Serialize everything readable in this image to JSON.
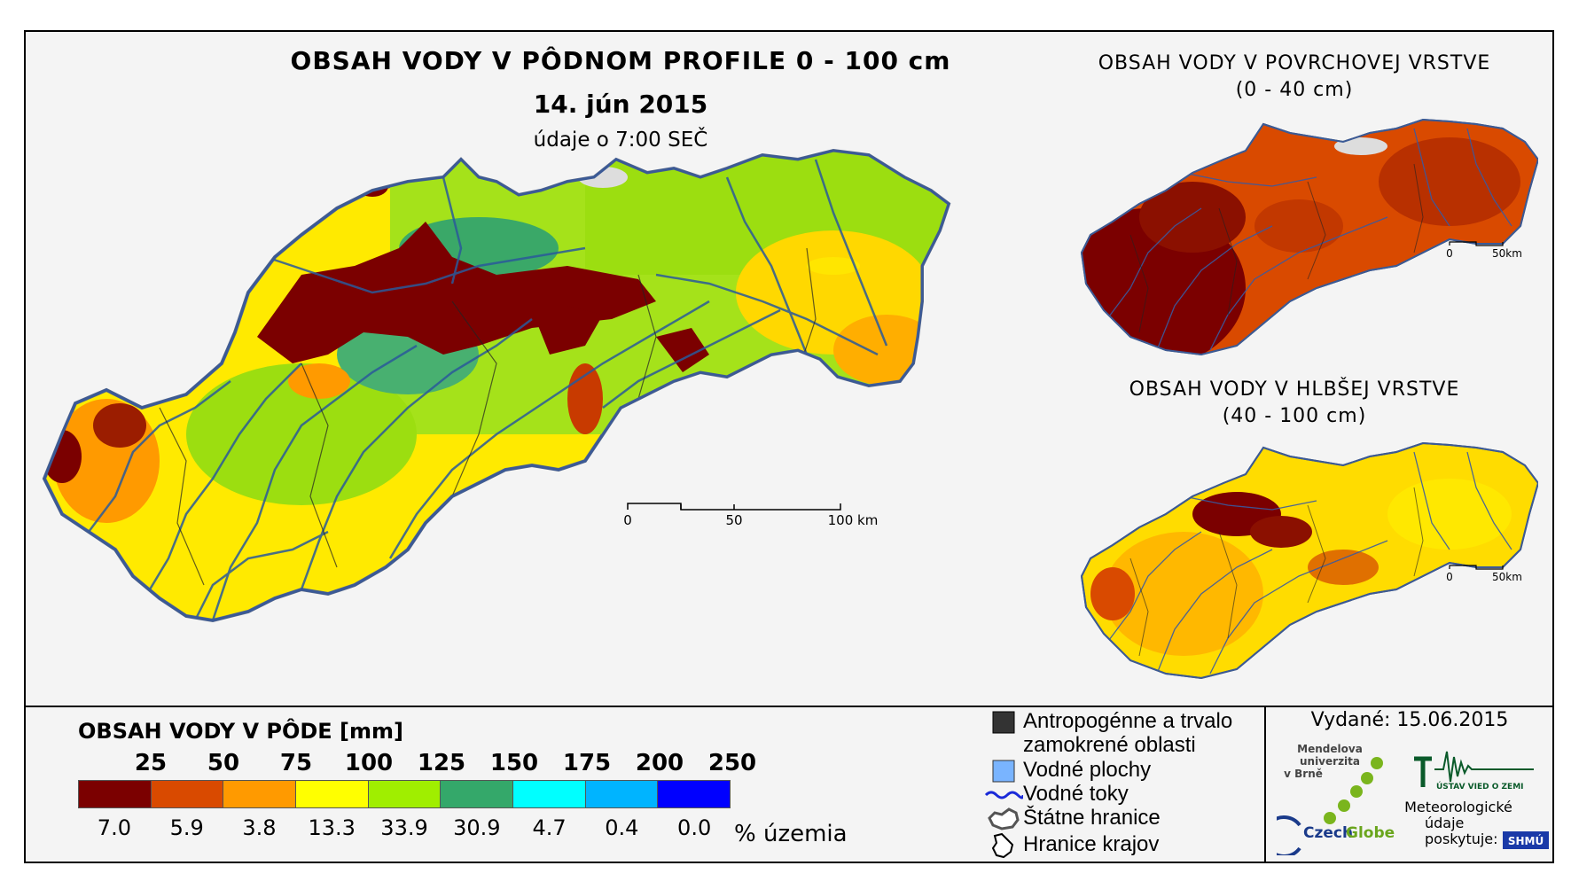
{
  "main": {
    "title": "OBSAH VODY V PÔDNOM PROFILE 0 - 100 cm",
    "date": "14. jún 2015",
    "subtitle": "údaje o 7:00 SEČ",
    "scale": {
      "labels": [
        "0",
        "50",
        "100 km"
      ]
    }
  },
  "inset_top": {
    "title_line1": "OBSAH VODY V POVRCHOVEJ VRSTVE",
    "title_line2": "(0 - 40 cm)",
    "scale": {
      "labels": [
        "0",
        "50km"
      ]
    }
  },
  "inset_bottom": {
    "title_line1": "OBSAH VODY V HLBŠEJ VRSTVE",
    "title_line2": "(40 - 100 cm)",
    "scale": {
      "labels": [
        "0",
        "50km"
      ]
    }
  },
  "legend": {
    "title": "OBSAH VODY V PÔDE [mm]",
    "bin_labels": [
      "25",
      "50",
      "75",
      "100",
      "125",
      "150",
      "175",
      "200",
      "250"
    ],
    "colors": [
      "#7b0000",
      "#d94a00",
      "#ff9a00",
      "#ffff00",
      "#a0ee00",
      "#34a86a",
      "#00ffff",
      "#00b4ff",
      "#0000ff"
    ],
    "percentages": [
      "7.0",
      "5.9",
      "3.8",
      "13.3",
      "33.9",
      "30.9",
      "4.7",
      "0.4",
      "0.0"
    ],
    "percent_unit": "% územia"
  },
  "symbols": [
    {
      "icon": "square-dark-icon",
      "label": "Antropogénne a trvalo zamokrené oblasti"
    },
    {
      "icon": "square-blue-icon",
      "label": "Vodné plochy"
    },
    {
      "icon": "river-line-icon",
      "label": "Vodné toky"
    },
    {
      "icon": "state-border-icon",
      "label": "Štátne hranice"
    },
    {
      "icon": "region-border-icon",
      "label": "Hranice krajov"
    }
  ],
  "issued": "Vydané: 15.06.2015",
  "logos": {
    "mendel": {
      "line1": "Mendelova",
      "line2": "univerzita",
      "line3": "v Brně"
    },
    "czechglobe": {
      "part1": "Czech",
      "part2": "Globe"
    },
    "uvz": "ÚSTAV VIED O ZEMI",
    "shmu": {
      "line1": "Meteorologické",
      "line2": "údaje",
      "line3": "poskytuje:",
      "mark": "SHMÚ"
    }
  }
}
